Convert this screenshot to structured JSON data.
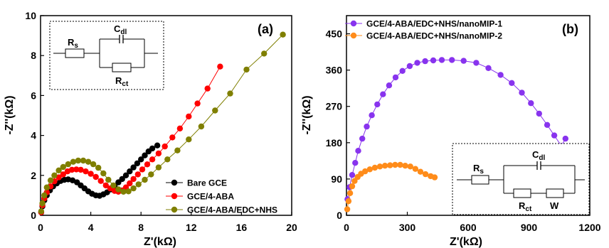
{
  "chart_data": [
    {
      "type": "scatter",
      "panel_label": "(a)",
      "xlabel": "Z'(kΩ)",
      "ylabel": "-Z''(kΩ)",
      "xlim": [
        0,
        20
      ],
      "ylim": [
        0,
        10
      ],
      "xticks": [
        "0",
        "4",
        "8",
        "12",
        "16",
        "20"
      ],
      "yticks": [
        "0",
        "2",
        "4",
        "6",
        "8",
        "10"
      ],
      "legend_position": "bottom-right",
      "circuit": {
        "r1": "R",
        "r1_sub": "s",
        "c": "C",
        "c_sub": "dl",
        "r2": "R",
        "r2_sub": "ct"
      },
      "series": [
        {
          "name": "Bare GCE",
          "color": "#000000",
          "x": [
            0.05,
            0.15,
            0.3,
            0.5,
            0.75,
            1.0,
            1.3,
            1.6,
            1.9,
            2.2,
            2.55,
            2.9,
            3.2,
            3.5,
            3.8,
            4.1,
            4.4,
            4.7,
            5.0,
            5.3,
            5.6,
            5.9,
            6.2,
            6.5,
            6.8,
            7.1,
            7.4,
            7.7,
            8.0,
            8.3,
            8.6,
            8.9,
            9.3
          ],
          "y": [
            0.15,
            0.45,
            0.75,
            1.0,
            1.25,
            1.45,
            1.6,
            1.72,
            1.78,
            1.8,
            1.75,
            1.65,
            1.5,
            1.35,
            1.2,
            1.08,
            1.0,
            0.98,
            1.05,
            1.15,
            1.3,
            1.47,
            1.65,
            1.82,
            2.0,
            2.2,
            2.4,
            2.6,
            2.8,
            3.0,
            3.2,
            3.35,
            3.5
          ]
        },
        {
          "name": "GCE/4-ABA",
          "color": "#ff0000",
          "x": [
            0.05,
            0.15,
            0.3,
            0.5,
            0.8,
            1.1,
            1.45,
            1.8,
            2.15,
            2.5,
            2.85,
            3.2,
            3.6,
            4.0,
            4.4,
            4.8,
            5.2,
            5.55,
            5.9,
            6.2,
            6.5,
            6.8,
            7.1,
            7.4,
            7.75,
            8.1,
            8.5,
            8.9,
            9.4,
            9.9,
            10.5,
            11.1,
            11.8,
            12.5,
            13.3,
            14.3
          ],
          "y": [
            0.15,
            0.5,
            0.85,
            1.15,
            1.45,
            1.7,
            1.9,
            2.05,
            2.2,
            2.28,
            2.3,
            2.28,
            2.2,
            2.08,
            1.92,
            1.72,
            1.5,
            1.35,
            1.22,
            1.18,
            1.25,
            1.4,
            1.6,
            1.82,
            2.05,
            2.3,
            2.55,
            2.8,
            3.1,
            3.45,
            3.9,
            4.35,
            4.95,
            5.6,
            6.35,
            7.45
          ]
        },
        {
          "name": "GCE/4-ABA/EDC+NHS",
          "color": "#7f7f00",
          "x": [
            0.05,
            0.15,
            0.3,
            0.5,
            0.8,
            1.1,
            1.45,
            1.8,
            2.2,
            2.6,
            3.0,
            3.4,
            3.8,
            4.2,
            4.6,
            5.0,
            5.4,
            5.8,
            6.2,
            6.6,
            7.0,
            7.4,
            7.8,
            8.3,
            8.8,
            9.4,
            10.1,
            10.9,
            11.8,
            12.8,
            13.9,
            15.1,
            16.4,
            17.8,
            19.3
          ],
          "y": [
            0.2,
            0.6,
            1.0,
            1.4,
            1.75,
            2.0,
            2.25,
            2.42,
            2.56,
            2.68,
            2.74,
            2.74,
            2.68,
            2.56,
            2.38,
            2.1,
            1.78,
            1.5,
            1.3,
            1.18,
            1.2,
            1.35,
            1.55,
            1.78,
            2.05,
            2.4,
            2.8,
            3.25,
            3.8,
            4.45,
            5.25,
            6.1,
            7.3,
            8.1,
            9.05
          ]
        }
      ]
    },
    {
      "type": "scatter",
      "panel_label": "(b)",
      "xlabel": "Z'(kΩ)",
      "ylabel": "-Z''(kΩ)",
      "xlim": [
        0,
        1200
      ],
      "ylim": [
        0,
        495
      ],
      "xticks": [
        "0",
        "300",
        "600",
        "900",
        "1200"
      ],
      "yticks": [
        "0",
        "90",
        "180",
        "270",
        "360",
        "450"
      ],
      "legend_position": "top-left",
      "circuit": {
        "r1": "R",
        "r1_sub": "s",
        "c": "C",
        "c_sub": "dl",
        "r2": "R",
        "r2_sub": "ct",
        "w": "W"
      },
      "series": [
        {
          "name": "GCE/4-ABA/EDC+NHS/nanoMIP-1",
          "color": "#8833ee",
          "x": [
            5,
            15,
            28,
            43,
            58,
            78,
            100,
            125,
            152,
            180,
            210,
            242,
            276,
            312,
            349,
            388,
            428,
            470,
            520,
            578,
            640,
            700,
            760,
            815,
            865,
            910,
            950,
            990,
            1025,
            1060,
            1080
          ],
          "y": [
            40,
            70,
            100,
            130,
            160,
            190,
            220,
            248,
            275,
            300,
            322,
            342,
            358,
            370,
            378,
            382,
            384,
            385,
            385,
            383,
            378,
            365,
            348,
            328,
            304,
            278,
            252,
            224,
            198,
            172,
            190
          ]
        },
        {
          "name": "GCE/4-ABA/EDC+NHS/nanoMIP-2",
          "color": "#ff8c1a",
          "x": [
            4,
            10,
            18,
            28,
            40,
            55,
            72,
            92,
            115,
            140,
            165,
            190,
            215,
            240,
            265,
            290,
            315,
            340,
            365,
            390,
            415,
            435
          ],
          "y": [
            15,
            35,
            55,
            72,
            85,
            95,
            103,
            109,
            114,
            118,
            121,
            123,
            124,
            125,
            125,
            123,
            121,
            115,
            108,
            102,
            97,
            94
          ]
        }
      ]
    }
  ]
}
